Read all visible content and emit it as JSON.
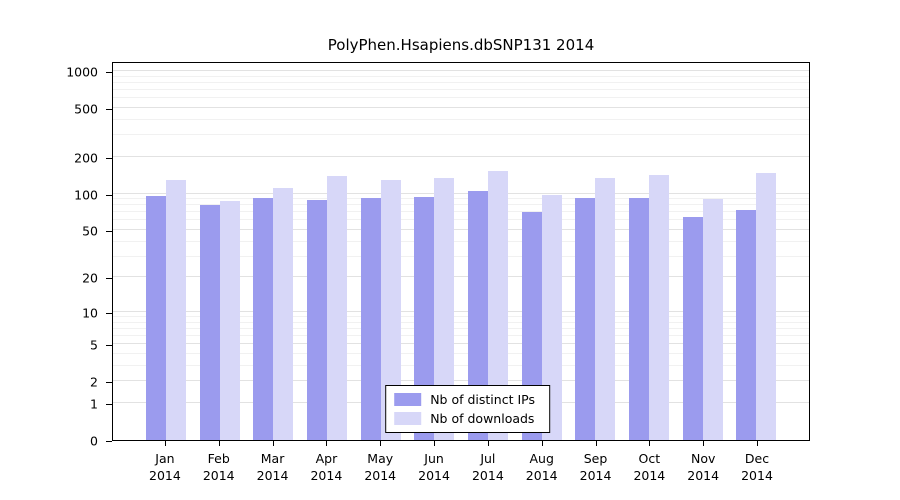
{
  "chart_data": {
    "type": "bar",
    "title": "PolyPhen.Hsapiens.dbSNP131 2014",
    "scale": "log1p",
    "ylim": [
      0,
      1000
    ],
    "yticks": [
      0,
      1,
      2,
      5,
      10,
      20,
      50,
      100,
      200,
      500,
      1000
    ],
    "grid": true,
    "legend_position": "bottom-center-inside",
    "categories": [
      "Jan",
      "Feb",
      "Mar",
      "Apr",
      "May",
      "Jun",
      "Jul",
      "Aug",
      "Sep",
      "Oct",
      "Nov",
      "Dec"
    ],
    "year": "2014",
    "series": [
      {
        "name": "Nb of distinct IPs",
        "color": "#9b9bee",
        "values": [
          95,
          80,
          92,
          89,
          92,
          93,
          104,
          70,
          92,
          92,
          64,
          73
        ]
      },
      {
        "name": "Nb of downloads",
        "color": "#d7d7f8",
        "values": [
          130,
          87,
          110,
          140,
          128,
          134,
          152,
          97,
          134,
          141,
          90,
          148
        ]
      }
    ]
  }
}
